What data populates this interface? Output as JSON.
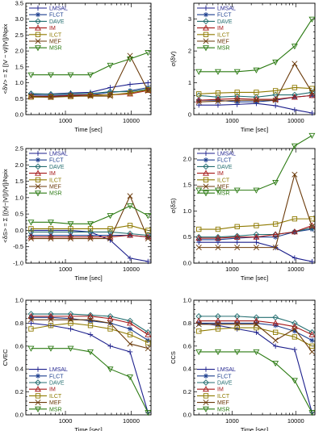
{
  "styles": [
    {
      "name": "LMSAL",
      "color": "#1c1f8c",
      "marker": "plus"
    },
    {
      "name": "FLCT",
      "color": "#1d3f8f",
      "marker": "asterisk"
    },
    {
      "name": "DAVE",
      "color": "#246e70",
      "marker": "diamond"
    },
    {
      "name": "IM",
      "color": "#a51717",
      "marker": "triangle"
    },
    {
      "name": "ILCT",
      "color": "#8f7a00",
      "marker": "square"
    },
    {
      "name": "MEF",
      "color": "#6b3a0a",
      "marker": "x"
    },
    {
      "name": "MSR",
      "color": "#2b7a12",
      "marker": "triangle-down"
    }
  ],
  "chart_data": [
    {
      "id": "p1",
      "type": "line",
      "xscale": "log",
      "xlim": [
        250,
        20000
      ],
      "ylim": [
        0,
        3.5
      ],
      "yticks": [
        0.0,
        0.5,
        1.0,
        1.5,
        2.0,
        2.5,
        3.0,
        3.5
      ],
      "xticks": [
        {
          "v": 1000,
          "label": "1000"
        },
        {
          "v": 10000,
          "label": "10000"
        }
      ],
      "xlabel": "Time [sec]",
      "ylabel": "<δV> = Σ [|V − v|/|V|]/Npix",
      "x": [
        300,
        600,
        1200,
        2400,
        4800,
        9600,
        18000
      ],
      "series": [
        {
          "name": "LMSAL",
          "values": [
            0.65,
            0.65,
            0.68,
            0.7,
            0.85,
            0.95,
            1.0
          ]
        },
        {
          "name": "FLCT",
          "values": [
            0.62,
            0.6,
            0.62,
            0.62,
            0.7,
            0.75,
            0.85
          ]
        },
        {
          "name": "DAVE",
          "values": [
            0.66,
            0.64,
            0.66,
            0.66,
            0.72,
            0.72,
            0.8
          ]
        },
        {
          "name": "IM",
          "values": [
            0.58,
            0.57,
            0.6,
            0.62,
            0.62,
            0.65,
            0.76
          ]
        },
        {
          "name": "ILCT",
          "values": [
            0.55,
            0.55,
            0.57,
            0.6,
            0.62,
            0.68,
            0.78
          ]
        },
        {
          "name": "MEF",
          "values": [
            0.57,
            0.55,
            0.58,
            0.58,
            0.58,
            1.85,
            0.75
          ]
        },
        {
          "name": "MSR",
          "values": [
            1.25,
            1.25,
            1.25,
            1.25,
            1.55,
            1.75,
            1.95
          ]
        }
      ]
    },
    {
      "id": "p2",
      "type": "line",
      "xscale": "log",
      "xlim": [
        250,
        20000
      ],
      "ylim": [
        0,
        3.5
      ],
      "yticks": [
        0,
        1,
        2,
        3
      ],
      "xticks": [
        {
          "v": 1000,
          "label": "1000"
        },
        {
          "v": 10000,
          "label": "10000"
        }
      ],
      "xlabel": "Time [sec]",
      "ylabel": "σ(δV)",
      "x": [
        300,
        600,
        1200,
        2400,
        4800,
        9600,
        18000
      ],
      "series": [
        {
          "name": "LMSAL",
          "values": [
            0.3,
            0.3,
            0.32,
            0.35,
            0.28,
            0.15,
            0.05
          ]
        },
        {
          "name": "FLCT",
          "values": [
            0.45,
            0.45,
            0.4,
            0.4,
            0.45,
            0.55,
            0.6
          ]
        },
        {
          "name": "DAVE",
          "values": [
            0.6,
            0.55,
            0.58,
            0.55,
            0.62,
            0.62,
            0.7
          ]
        },
        {
          "name": "IM",
          "values": [
            0.45,
            0.48,
            0.5,
            0.48,
            0.48,
            0.55,
            0.6
          ]
        },
        {
          "name": "ILCT",
          "values": [
            0.65,
            0.68,
            0.7,
            0.7,
            0.75,
            0.85,
            0.82
          ]
        },
        {
          "name": "MEF",
          "values": [
            0.4,
            0.42,
            0.45,
            0.45,
            0.45,
            1.6,
            0.7
          ]
        },
        {
          "name": "MSR",
          "values": [
            1.35,
            1.35,
            1.35,
            1.4,
            1.65,
            2.15,
            3.0
          ]
        }
      ]
    },
    {
      "id": "p3",
      "type": "line",
      "xscale": "log",
      "xlim": [
        250,
        20000
      ],
      "ylim": [
        -1.0,
        2.5
      ],
      "yticks": [
        -1.0,
        -0.5,
        0.0,
        0.5,
        1.0,
        1.5,
        2.0,
        2.5
      ],
      "xticks": [
        {
          "v": 1000,
          "label": "1000"
        },
        {
          "v": 10000,
          "label": "10000"
        }
      ],
      "xlabel": "Time [sec]",
      "ylabel": "<δS> = Σ [(|v|−|V|)/|V|]/Npix",
      "x": [
        300,
        600,
        1200,
        2400,
        4800,
        9600,
        18000
      ],
      "series": [
        {
          "name": "LMSAL",
          "values": [
            0.0,
            0.0,
            0.0,
            -0.05,
            -0.3,
            -0.85,
            -0.95
          ]
        },
        {
          "name": "FLCT",
          "values": [
            -0.15,
            -0.15,
            -0.15,
            -0.15,
            -0.15,
            -0.15,
            -0.2
          ]
        },
        {
          "name": "DAVE",
          "values": [
            -0.05,
            -0.05,
            -0.05,
            -0.05,
            -0.05,
            -0.1,
            -0.15
          ]
        },
        {
          "name": "IM",
          "values": [
            -0.2,
            -0.2,
            -0.2,
            -0.2,
            -0.2,
            -0.15,
            -0.2
          ]
        },
        {
          "name": "ILCT",
          "values": [
            0.05,
            0.05,
            0.05,
            0.05,
            0.05,
            0.15,
            0.0
          ]
        },
        {
          "name": "MEF",
          "values": [
            -0.25,
            -0.25,
            -0.25,
            -0.25,
            -0.25,
            1.05,
            -0.25
          ]
        },
        {
          "name": "MSR",
          "values": [
            0.25,
            0.25,
            0.2,
            0.2,
            0.45,
            0.75,
            0.45
          ]
        }
      ]
    },
    {
      "id": "p4",
      "type": "line",
      "xscale": "log",
      "xlim": [
        250,
        20000
      ],
      "ylim": [
        0.0,
        2.2
      ],
      "yticks": [
        0.0,
        0.5,
        1.0,
        1.5,
        2.0
      ],
      "xticks": [
        {
          "v": 1000,
          "label": "1000"
        },
        {
          "v": 10000,
          "label": "10000"
        }
      ],
      "xlabel": "Time [sec]",
      "ylabel": "σ(δS)",
      "x": [
        300,
        600,
        1200,
        2400,
        4800,
        9600,
        18000
      ],
      "series": [
        {
          "name": "LMSAL",
          "values": [
            0.4,
            0.4,
            0.4,
            0.4,
            0.3,
            0.1,
            0.03
          ]
        },
        {
          "name": "FLCT",
          "values": [
            0.45,
            0.45,
            0.48,
            0.5,
            0.5,
            0.6,
            0.65
          ]
        },
        {
          "name": "DAVE",
          "values": [
            0.5,
            0.5,
            0.52,
            0.55,
            0.55,
            0.6,
            0.68
          ]
        },
        {
          "name": "IM",
          "values": [
            0.48,
            0.48,
            0.5,
            0.5,
            0.55,
            0.6,
            0.72
          ]
        },
        {
          "name": "ILCT",
          "values": [
            0.65,
            0.65,
            0.7,
            0.72,
            0.75,
            0.85,
            0.85
          ]
        },
        {
          "name": "MEF",
          "values": [
            0.3,
            0.3,
            0.3,
            0.3,
            0.3,
            1.7,
            0.7
          ]
        },
        {
          "name": "MSR",
          "values": [
            1.4,
            1.4,
            1.4,
            1.4,
            1.55,
            2.25,
            2.45
          ]
        }
      ]
    },
    {
      "id": "p5",
      "type": "line",
      "xscale": "log",
      "xlim": [
        250,
        20000
      ],
      "ylim": [
        0.0,
        1.0
      ],
      "yticks": [
        0.0,
        0.2,
        0.4,
        0.6,
        0.8,
        1.0
      ],
      "xticks": [
        {
          "v": 1000,
          "label": "1000"
        },
        {
          "v": 10000,
          "label": "10000"
        }
      ],
      "xlabel": "Time [sec]",
      "ylabel": "CVEC",
      "x": [
        300,
        600,
        1200,
        2400,
        4800,
        9600,
        18000
      ],
      "series": [
        {
          "name": "LMSAL",
          "values": [
            0.8,
            0.78,
            0.75,
            0.7,
            0.6,
            0.55,
            0.02
          ]
        },
        {
          "name": "FLCT",
          "values": [
            0.85,
            0.85,
            0.84,
            0.82,
            0.8,
            0.75,
            0.65
          ]
        },
        {
          "name": "DAVE",
          "values": [
            0.88,
            0.88,
            0.88,
            0.87,
            0.86,
            0.82,
            0.72
          ]
        },
        {
          "name": "IM",
          "values": [
            0.86,
            0.86,
            0.86,
            0.86,
            0.84,
            0.8,
            0.7
          ]
        },
        {
          "name": "ILCT",
          "values": [
            0.75,
            0.78,
            0.8,
            0.78,
            0.75,
            0.7,
            0.63
          ]
        },
        {
          "name": "MEF",
          "values": [
            0.83,
            0.83,
            0.83,
            0.83,
            0.8,
            0.62,
            0.58
          ]
        },
        {
          "name": "MSR",
          "values": [
            0.58,
            0.58,
            0.58,
            0.55,
            0.4,
            0.33,
            0.02
          ]
        }
      ]
    },
    {
      "id": "p6",
      "type": "line",
      "xscale": "log",
      "xlim": [
        250,
        20000
      ],
      "ylim": [
        0.0,
        1.0
      ],
      "yticks": [
        0.0,
        0.2,
        0.4,
        0.6,
        0.8,
        1.0
      ],
      "xticks": [
        {
          "v": 1000,
          "label": "1000"
        },
        {
          "v": 10000,
          "label": "10000"
        }
      ],
      "xlabel": "Time [sec]",
      "ylabel": "CCS",
      "x": [
        300,
        600,
        1200,
        2400,
        4800,
        9600,
        18000
      ],
      "series": [
        {
          "name": "LMSAL",
          "values": [
            0.8,
            0.78,
            0.75,
            0.72,
            0.6,
            0.57,
            0.02
          ]
        },
        {
          "name": "FLCT",
          "values": [
            0.8,
            0.8,
            0.8,
            0.8,
            0.78,
            0.73,
            0.65
          ]
        },
        {
          "name": "DAVE",
          "values": [
            0.86,
            0.86,
            0.86,
            0.85,
            0.85,
            0.8,
            0.72
          ]
        },
        {
          "name": "IM",
          "values": [
            0.82,
            0.82,
            0.82,
            0.82,
            0.8,
            0.77,
            0.7
          ]
        },
        {
          "name": "ILCT",
          "values": [
            0.73,
            0.75,
            0.76,
            0.76,
            0.72,
            0.68,
            0.6
          ]
        },
        {
          "name": "MEF",
          "values": [
            0.79,
            0.79,
            0.79,
            0.79,
            0.65,
            0.75,
            0.55
          ]
        },
        {
          "name": "MSR",
          "values": [
            0.55,
            0.55,
            0.55,
            0.55,
            0.45,
            0.3,
            0.02
          ]
        }
      ]
    }
  ]
}
